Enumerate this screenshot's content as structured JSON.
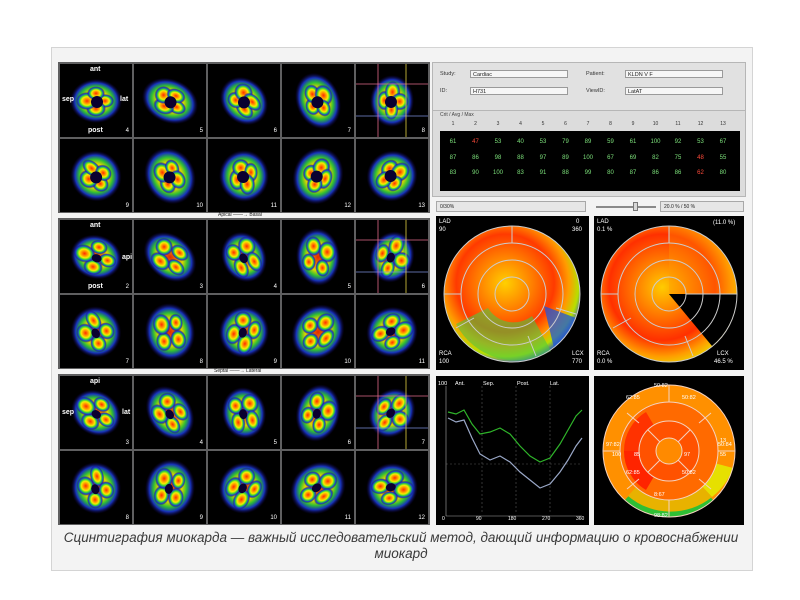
{
  "section1": {
    "labels": {
      "ant": "ant",
      "sep": "sep",
      "lat": "lat",
      "post": "post"
    },
    "numbers": [
      "4",
      "5",
      "6",
      "7",
      "8",
      "9",
      "10",
      "11",
      "12",
      "13"
    ]
  },
  "divider1": "Apical ——→ Basal",
  "section2": {
    "labels": {
      "ant": "ant",
      "api": "api",
      "post": "post"
    },
    "numbers": [
      "2",
      "3",
      "4",
      "5",
      "6",
      "7",
      "8",
      "9",
      "10",
      "11"
    ]
  },
  "divider2": "Septal ——→ Lateral",
  "section3": {
    "labels": {
      "api": "api",
      "sep": "sep",
      "lat": "lat"
    },
    "numbers": [
      "3",
      "4",
      "5",
      "6",
      "7",
      "8",
      "9",
      "10",
      "11",
      "12"
    ]
  },
  "info": {
    "study_label": "Study:",
    "study_value": "Cardiac",
    "patient_label": "Patient:",
    "patient_value": "KLDN V F",
    "id_label": "ID:",
    "id_value": "H731",
    "view_label": "ViewID:",
    "view_value": "LatAT"
  },
  "table": {
    "header": "Crit / Avg / Max",
    "columns": [
      "1",
      "2",
      "3",
      "4",
      "5",
      "6",
      "7",
      "8",
      "9",
      "10",
      "11",
      "12",
      "13"
    ],
    "rows": [
      [
        {
          "v": "61",
          "c": "g"
        },
        {
          "v": "47",
          "c": "r"
        },
        {
          "v": "53",
          "c": "g"
        },
        {
          "v": "40",
          "c": "g"
        },
        {
          "v": "53",
          "c": "g"
        },
        {
          "v": "79",
          "c": "g"
        },
        {
          "v": "89",
          "c": "g"
        },
        {
          "v": "59",
          "c": "g"
        },
        {
          "v": "61",
          "c": "g"
        },
        {
          "v": "100",
          "c": "g"
        },
        {
          "v": "92",
          "c": "g"
        },
        {
          "v": "53",
          "c": "g"
        },
        {
          "v": "67",
          "c": "g"
        }
      ],
      [
        {
          "v": "87",
          "c": "g"
        },
        {
          "v": "86",
          "c": "g"
        },
        {
          "v": "98",
          "c": "g"
        },
        {
          "v": "88",
          "c": "g"
        },
        {
          "v": "97",
          "c": "g"
        },
        {
          "v": "89",
          "c": "g"
        },
        {
          "v": "100",
          "c": "g"
        },
        {
          "v": "67",
          "c": "g"
        },
        {
          "v": "69",
          "c": "g"
        },
        {
          "v": "82",
          "c": "g"
        },
        {
          "v": "75",
          "c": "g"
        },
        {
          "v": "48",
          "c": "r"
        },
        {
          "v": "55",
          "c": "g"
        }
      ],
      [
        {
          "v": "83",
          "c": "g"
        },
        {
          "v": "90",
          "c": "g"
        },
        {
          "v": "100",
          "c": "g"
        },
        {
          "v": "83",
          "c": "g"
        },
        {
          "v": "91",
          "c": "g"
        },
        {
          "v": "88",
          "c": "g"
        },
        {
          "v": "99",
          "c": "g"
        },
        {
          "v": "80",
          "c": "g"
        },
        {
          "v": "87",
          "c": "g"
        },
        {
          "v": "86",
          "c": "g"
        },
        {
          "v": "86",
          "c": "g"
        },
        {
          "v": "62",
          "c": "r"
        },
        {
          "v": "80",
          "c": "g"
        }
      ]
    ]
  },
  "controls": {
    "left": "0/30%",
    "right": "20.0 % / 50 %"
  },
  "bullseye1": {
    "lad_label": "LAD",
    "lad_value": "90",
    "top_right_a": "0",
    "top_right_b": "360",
    "rca_label": "RCA",
    "rca_value": "100",
    "lcx_label": "LCX",
    "lcx_value": "770"
  },
  "bullseye2": {
    "lad_label": "LAD",
    "lad_value": "0.1 %",
    "top_right": "(11.0 %)",
    "rca_label": "RCA",
    "rca_value": "0.0 %",
    "lcx_label": "LCX",
    "lcx_value": "46.5 %"
  },
  "curve": {
    "ylabel": "100",
    "sections": [
      "Ant.",
      "Sep.",
      "Post.",
      "Lat."
    ],
    "xticks": [
      "0",
      "90",
      "180",
      "270",
      "360"
    ]
  },
  "segments": {
    "values": [
      "50:82",
      "62:85",
      "50:82",
      "97:82",
      "50:84",
      "62:85",
      "50:82",
      "100",
      "85",
      "97",
      "13",
      "55",
      "8:67",
      "98:82"
    ]
  },
  "caption": "Сцинтиграфия миокарда — важный исследовательский метод, дающий информацию о кровоснабжении миокард"
}
